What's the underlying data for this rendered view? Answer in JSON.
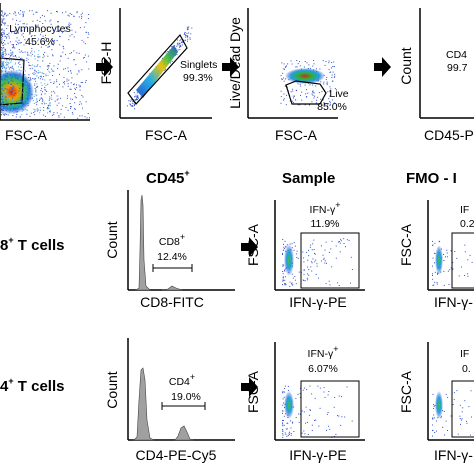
{
  "row1": {
    "p1": {
      "xlabel": "FSC-A",
      "gate_name": "Lymphocytes",
      "gate_value": "45.6%"
    },
    "p2": {
      "ylabel": "FSC-H",
      "xlabel": "FSC-A",
      "gate_name": "Singlets",
      "gate_value": "99.3%"
    },
    "p3": {
      "ylabel": "Live/Dead Dye",
      "xlabel": "FSC-A",
      "gate_name": "Live",
      "gate_value": "85.0%"
    },
    "p4": {
      "ylabel": "Count",
      "xlabel": "CD45-P",
      "gate_name": "CD4",
      "gate_value": "99.7"
    }
  },
  "headers": {
    "cd45": "CD45",
    "cd45_sup": "+",
    "sample": "Sample",
    "fmo": "FMO - I"
  },
  "rows": {
    "cd8": {
      "label_pre": "8",
      "label_sup": "+",
      "label_post": " T cells",
      "hist_xlabel": "CD8-FITC",
      "hist_ylabel": "Count",
      "hist_gate": "CD8",
      "hist_gate_sup": "+",
      "hist_value": "12.4%",
      "sample_ylabel": "FSC-A",
      "sample_xlabel": "IFN-γ-PE",
      "sample_gate": "IFN-γ",
      "sample_gate_sup": "+",
      "sample_value": "11.9%",
      "fmo_ylabel": "FSC-A",
      "fmo_xlabel": "IFN-γ-PE",
      "fmo_gate": "IF",
      "fmo_value": "0.2"
    },
    "cd4": {
      "label_pre": "4",
      "label_sup": "+",
      "label_post": " T cells",
      "hist_xlabel": "CD4-PE-Cy5",
      "hist_ylabel": "Count",
      "hist_gate": "CD4",
      "hist_gate_sup": "+",
      "hist_value": "19.0%",
      "sample_ylabel": "FSC-A",
      "sample_xlabel": "IFN-γ-PE",
      "sample_gate": "IFN-γ",
      "sample_gate_sup": "+",
      "sample_value": "6.07%",
      "fmo_ylabel": "FSC-A",
      "fmo_xlabel": "IFN-γ-PE",
      "fmo_gate": "IF",
      "fmo_value": "0."
    }
  }
}
